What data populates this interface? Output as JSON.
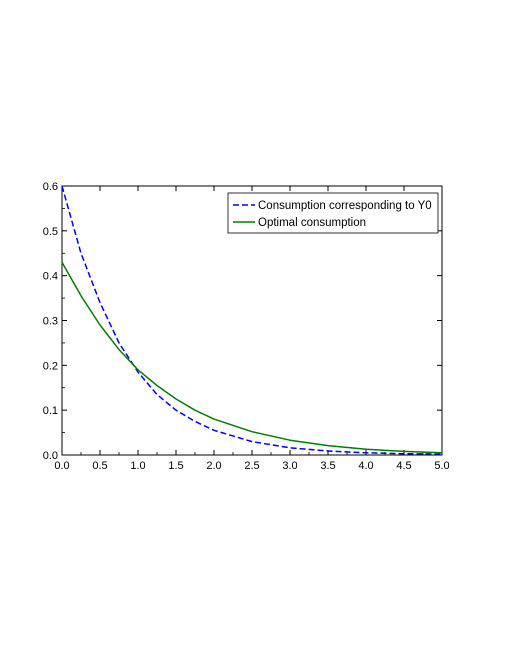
{
  "chart_data": {
    "type": "line",
    "title": "",
    "xlabel": "",
    "ylabel": "",
    "xlim": [
      0.0,
      5.0
    ],
    "ylim": [
      0.0,
      0.6
    ],
    "grid": false,
    "legend_position": "top-right",
    "x_ticks": [
      "0.0",
      "0.5",
      "1.0",
      "1.5",
      "2.0",
      "2.5",
      "3.0",
      "3.5",
      "4.0",
      "4.5",
      "5.0"
    ],
    "y_ticks": [
      "0.0",
      "0.1",
      "0.2",
      "0.3",
      "0.4",
      "0.5",
      "0.6"
    ],
    "x": [
      0.0,
      0.25,
      0.5,
      0.75,
      1.0,
      1.25,
      1.5,
      1.75,
      2.0,
      2.5,
      3.0,
      3.5,
      4.0,
      4.5,
      5.0
    ],
    "series": [
      {
        "name": "Consumption corresponding to Y0",
        "color": "#0000ff",
        "style": "dashed",
        "values": [
          0.6,
          0.45,
          0.34,
          0.25,
          0.185,
          0.135,
          0.1,
          0.075,
          0.055,
          0.03,
          0.016,
          0.009,
          0.005,
          0.003,
          0.002
        ]
      },
      {
        "name": "Optimal consumption",
        "color": "#008000",
        "style": "solid",
        "values": [
          0.43,
          0.355,
          0.29,
          0.235,
          0.19,
          0.155,
          0.125,
          0.1,
          0.08,
          0.052,
          0.033,
          0.021,
          0.013,
          0.008,
          0.005
        ]
      }
    ]
  }
}
